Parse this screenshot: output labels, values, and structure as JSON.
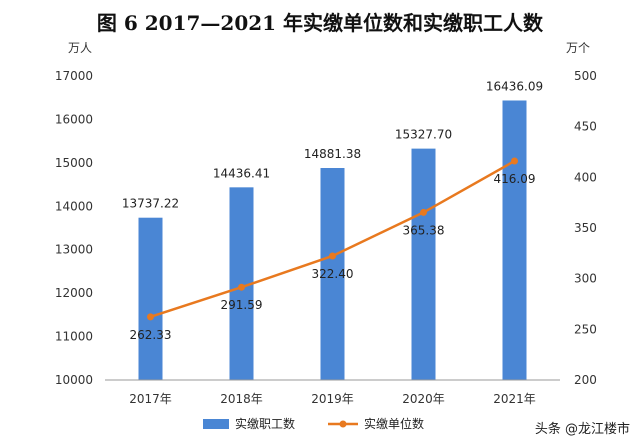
{
  "chart_data": {
    "type": "bar",
    "title": "图 6   2017—2021 年实缴单位数和实缴职工人数",
    "categories": [
      "2017年",
      "2018年",
      "2019年",
      "2020年",
      "2021年"
    ],
    "series": [
      {
        "name": "实缴职工数",
        "type": "bar",
        "axis": "left",
        "values": [
          13737.22,
          14436.41,
          14881.38,
          15327.7,
          16436.09
        ],
        "labels": [
          "13737.22",
          "14436.41",
          "14881.38",
          "15327.70",
          "16436.09"
        ]
      },
      {
        "name": "实缴单位数",
        "type": "line",
        "axis": "right",
        "values": [
          262.33,
          291.59,
          322.4,
          365.38,
          416.09
        ],
        "labels": [
          "262.33",
          "291.59",
          "322.40",
          "365.38",
          "416.09"
        ]
      }
    ],
    "y_left": {
      "unit": "万人",
      "ylim": [
        10000,
        17000
      ],
      "ticks": [
        "10000",
        "11000",
        "12000",
        "13000",
        "14000",
        "15000",
        "16000",
        "17000"
      ]
    },
    "y_right": {
      "unit": "万个",
      "ylim": [
        200,
        500
      ],
      "ticks": [
        "200",
        "250",
        "300",
        "350",
        "400",
        "450",
        "500"
      ]
    },
    "legend_position": "bottom-center",
    "grid": false
  },
  "colors": {
    "bar": "#4a86d4",
    "line": "#e8791f",
    "axis": "#9a9a9a"
  },
  "watermark": "头条 @龙江楼市"
}
